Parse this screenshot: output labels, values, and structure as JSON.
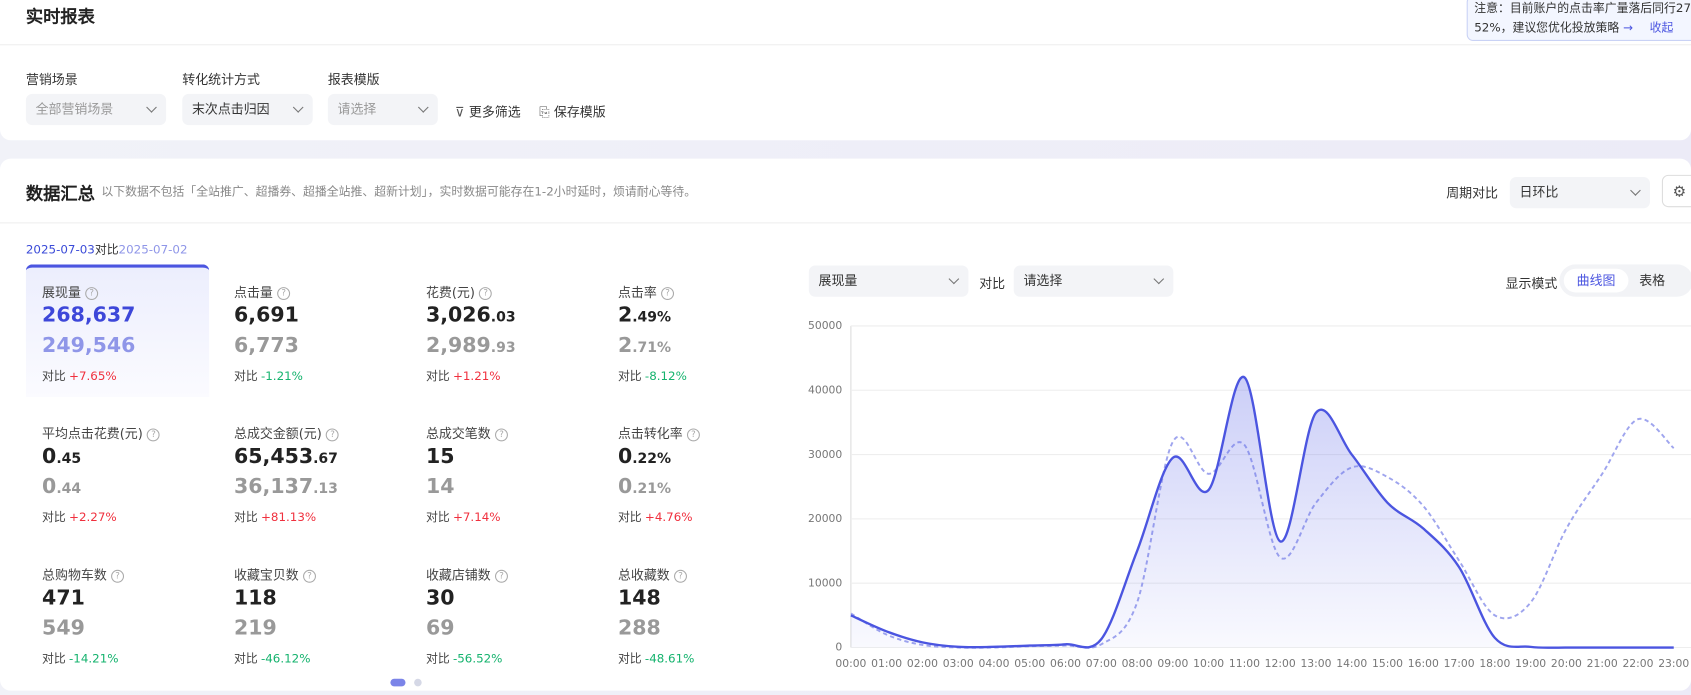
{
  "header": {
    "title": "实时报表",
    "notice_line1": "注意：目前账户的点击率广量落后同行27",
    "notice_line2": "52%，建议您优化投放策略",
    "collapse": "收起"
  },
  "filters": [
    {
      "label": "营销场景",
      "value": "全部营销场景"
    },
    {
      "label": "转化统计方式",
      "value": "末次点击归因"
    },
    {
      "label": "报表模版",
      "value": "请选择"
    }
  ],
  "filter_actions": [
    "更多筛选",
    "保存模版"
  ],
  "summary": {
    "title": "数据汇总",
    "note": "以下数据不包括「全站推广、超播券、超播全站推、超新计划」，实时数据可能存在1-2小时延时，烦请耐心等待。",
    "period_label": "周期对比",
    "period_value": "日环比",
    "date_current": "2025-07-03",
    "compare_word": "对比",
    "date_previous": "2025-07-02"
  },
  "metrics": [
    {
      "label": "展现量",
      "current": "268,637",
      "previous": "249,546",
      "delta": "+7.65%"
    },
    {
      "label": "点击量",
      "current": "6,691",
      "previous": "6,773",
      "delta": "-1.21%"
    },
    {
      "label": "花费(元)",
      "current": "3,026.03",
      "previous": "2,989.93",
      "delta": "+1.21%"
    },
    {
      "label": "点击率",
      "current": "2.49%",
      "previous": "2.71%",
      "delta": "-8.12%"
    },
    {
      "label": "平均点击花费(元)",
      "current": "0.45",
      "previous": "0.44",
      "delta": "+2.27%"
    },
    {
      "label": "总成交金额(元)",
      "current": "65,453.67",
      "previous": "36,137.13",
      "delta": "+81.13%"
    },
    {
      "label": "总成交笔数",
      "current": "15",
      "previous": "14",
      "delta": "+7.14%"
    },
    {
      "label": "点击转化率",
      "current": "0.22%",
      "previous": "0.21%",
      "delta": "+4.76%"
    },
    {
      "label": "总购物车数",
      "current": "471",
      "previous": "549",
      "delta": "-14.21%"
    },
    {
      "label": "收藏宝贝数",
      "current": "118",
      "previous": "219",
      "delta": "-46.12%"
    },
    {
      "label": "收藏店铺数",
      "current": "30",
      "previous": "69",
      "delta": "-56.52%"
    },
    {
      "label": "总收藏数",
      "current": "148",
      "previous": "288",
      "delta": "-48.61%"
    }
  ],
  "compare_label": "对比",
  "chart_controls": {
    "metric": "展现量",
    "compare_label": "对比",
    "compare_value": "请选择",
    "mode_label": "显示模式",
    "mode_curve": "曲线图",
    "mode_table": "表格"
  },
  "chart_data": {
    "type": "line",
    "categories": [
      "00:00",
      "01:00",
      "02:00",
      "03:00",
      "04:00",
      "05:00",
      "06:00",
      "07:00",
      "08:00",
      "09:00",
      "10:00",
      "11:00",
      "12:00",
      "13:00",
      "14:00",
      "15:00",
      "16:00",
      "17:00",
      "18:00",
      "19:00",
      "20:00",
      "21:00",
      "22:00",
      "23:00"
    ],
    "series": [
      {
        "color": "#4b55e0",
        "values": [
          5000,
          2500,
          800,
          100,
          100,
          300,
          500,
          1300,
          15000,
          29500,
          24500,
          42000,
          16500,
          36500,
          30000,
          22500,
          18500,
          12500,
          1500,
          100,
          0,
          0,
          0,
          0
        ]
      },
      {
        "color": "#9fa5ee",
        "values": [
          5300,
          2000,
          400,
          0,
          0,
          200,
          300,
          500,
          7000,
          32000,
          27000,
          31500,
          14000,
          22500,
          28000,
          26500,
          22000,
          13500,
          5000,
          7000,
          18500,
          27000,
          35500,
          31000
        ]
      }
    ],
    "ylim": [
      0,
      50000
    ],
    "yticks": [
      0,
      10000,
      20000,
      30000,
      40000,
      50000
    ],
    "grid": true
  }
}
